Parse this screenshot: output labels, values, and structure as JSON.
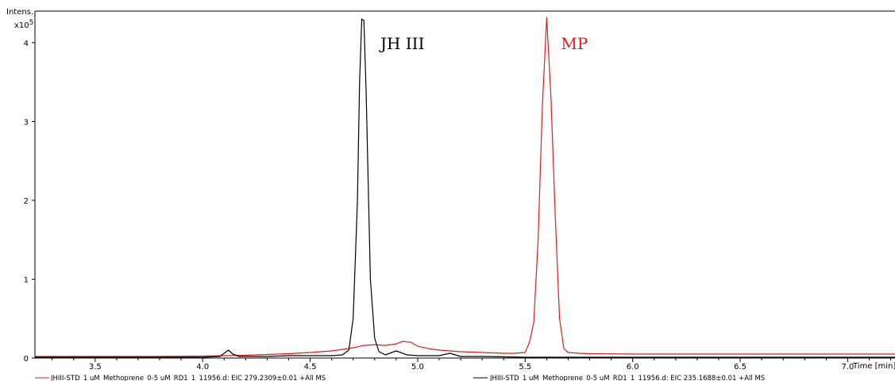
{
  "chart_data": {
    "type": "line",
    "y_axis": {
      "title": "Intens.",
      "multiplier": "x10",
      "exponent": "5",
      "range": [
        0,
        4.4
      ],
      "ticks": [
        0,
        1,
        2,
        3,
        4
      ],
      "tick_labels": [
        "0",
        "1",
        "2",
        "3",
        "4"
      ]
    },
    "x_axis": {
      "title": "Time [min]",
      "range": [
        3.22,
        7.22
      ],
      "ticks": [
        3.5,
        4.0,
        4.5,
        5.0,
        5.5,
        6.0,
        6.5,
        7.0
      ],
      "tick_labels": [
        "3.5",
        "4.0",
        "4.5",
        "5.0",
        "5.5",
        "6.0",
        "6.5",
        "7.0"
      ]
    },
    "grid": false,
    "legend_placement": "bottom",
    "annotations": [
      {
        "text": "JH III",
        "x": 4.76,
        "y": 4.02,
        "color": "#000000"
      },
      {
        "text": "MP",
        "x": 5.6,
        "y": 4.02,
        "color": "#e31a1c"
      }
    ],
    "series": [
      {
        "name": "JHIII-STD_1 uM_Methoprene_0-5 uM_RD1_1_11956.d: EIC 279.2309±0.01 +All MS",
        "color": "#e31a1c",
        "x": [
          3.22,
          3.5,
          3.8,
          4.0,
          4.1,
          4.2,
          4.3,
          4.4,
          4.5,
          4.6,
          4.7,
          4.75,
          4.8,
          4.85,
          4.9,
          4.93,
          4.97,
          5.0,
          5.05,
          5.1,
          5.2,
          5.3,
          5.4,
          5.45,
          5.5,
          5.52,
          5.54,
          5.56,
          5.58,
          5.6,
          5.62,
          5.64,
          5.66,
          5.68,
          5.7,
          5.75,
          5.8,
          6.0,
          6.5,
          7.0,
          7.22
        ],
        "y": [
          0.02,
          0.02,
          0.02,
          0.025,
          0.03,
          0.035,
          0.045,
          0.055,
          0.07,
          0.09,
          0.13,
          0.16,
          0.17,
          0.16,
          0.18,
          0.21,
          0.2,
          0.15,
          0.12,
          0.1,
          0.08,
          0.07,
          0.06,
          0.06,
          0.07,
          0.2,
          0.45,
          1.5,
          3.2,
          4.32,
          3.3,
          1.8,
          0.5,
          0.12,
          0.07,
          0.06,
          0.055,
          0.05,
          0.05,
          0.05,
          0.05
        ]
      },
      {
        "name": "JHIII-STD_1 uM_Methoprene_0-5 uM_RD1_1_11956.d: EIC 235.1688±0.01 +All MS",
        "color": "#000000",
        "x": [
          3.22,
          3.5,
          4.0,
          4.08,
          4.12,
          4.14,
          4.17,
          4.2,
          4.3,
          4.4,
          4.5,
          4.6,
          4.65,
          4.68,
          4.7,
          4.72,
          4.73,
          4.74,
          4.75,
          4.76,
          4.77,
          4.78,
          4.8,
          4.82,
          4.85,
          4.9,
          4.95,
          5.0,
          5.1,
          5.15,
          5.2,
          5.3,
          5.5,
          6.0,
          6.5,
          7.0,
          7.22
        ],
        "y": [
          0.01,
          0.01,
          0.01,
          0.02,
          0.1,
          0.05,
          0.02,
          0.02,
          0.02,
          0.03,
          0.03,
          0.03,
          0.04,
          0.1,
          0.5,
          2.0,
          3.5,
          4.3,
          4.28,
          3.4,
          2.2,
          1.0,
          0.25,
          0.08,
          0.04,
          0.09,
          0.04,
          0.03,
          0.03,
          0.06,
          0.02,
          0.02,
          0.01,
          0.01,
          0.01,
          0.01,
          0.01
        ]
      }
    ]
  }
}
